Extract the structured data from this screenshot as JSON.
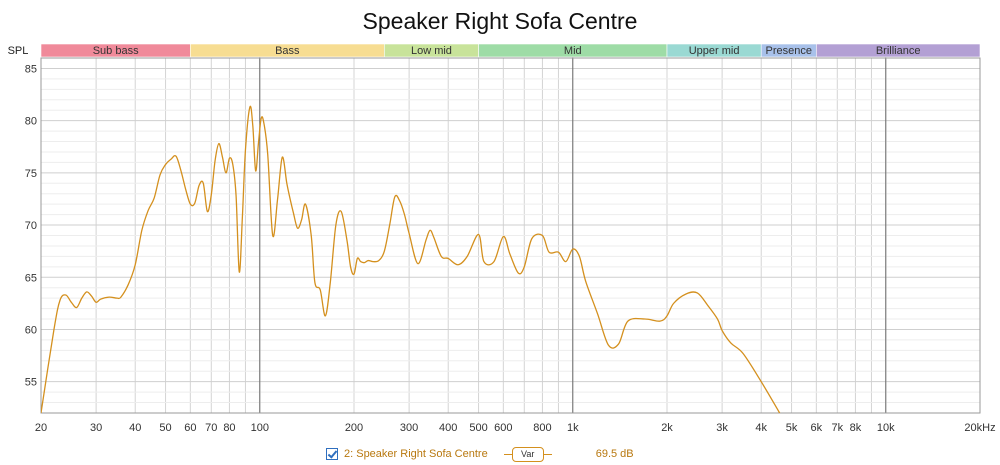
{
  "chart_data": {
    "type": "line",
    "title": "Speaker Right Sofa Centre",
    "ylabel": "SPL",
    "xlabel": "",
    "x_scale": "log",
    "xlim": [
      20,
      20000
    ],
    "ylim": [
      52,
      86
    ],
    "y_ticks": [
      "85",
      "80",
      "75",
      "70",
      "65",
      "60",
      "55"
    ],
    "y_tick_values": [
      85,
      80,
      75,
      70,
      65,
      60,
      55
    ],
    "x_ticks": [
      {
        "v": 20,
        "label": "20"
      },
      {
        "v": 30,
        "label": "30"
      },
      {
        "v": 40,
        "label": "40"
      },
      {
        "v": 50,
        "label": "50"
      },
      {
        "v": 60,
        "label": "60"
      },
      {
        "v": 70,
        "label": "70"
      },
      {
        "v": 80,
        "label": "80"
      },
      {
        "v": 100,
        "label": "100"
      },
      {
        "v": 200,
        "label": "200"
      },
      {
        "v": 300,
        "label": "300"
      },
      {
        "v": 400,
        "label": "400"
      },
      {
        "v": 500,
        "label": "500"
      },
      {
        "v": 600,
        "label": "600"
      },
      {
        "v": 800,
        "label": "800"
      },
      {
        "v": 1000,
        "label": "1k"
      },
      {
        "v": 2000,
        "label": "2k"
      },
      {
        "v": 3000,
        "label": "3k"
      },
      {
        "v": 4000,
        "label": "4k"
      },
      {
        "v": 5000,
        "label": "5k"
      },
      {
        "v": 6000,
        "label": "6k"
      },
      {
        "v": 7000,
        "label": "7k"
      },
      {
        "v": 8000,
        "label": "8k"
      },
      {
        "v": 10000,
        "label": "10k"
      },
      {
        "v": 20000,
        "label": "20kHz"
      }
    ],
    "major_x": [
      100,
      1000,
      10000
    ],
    "bands": [
      {
        "name": "Sub bass",
        "from": 20,
        "to": 60,
        "color": "#f08a9a"
      },
      {
        "name": "Bass",
        "from": 60,
        "to": 250,
        "color": "#f7dd92"
      },
      {
        "name": "Low mid",
        "from": 250,
        "to": 500,
        "color": "#c8e39a"
      },
      {
        "name": "Mid",
        "from": 500,
        "to": 2000,
        "color": "#9edca6"
      },
      {
        "name": "Upper mid",
        "from": 2000,
        "to": 4000,
        "color": "#9ad9d3"
      },
      {
        "name": "Presence",
        "from": 4000,
        "to": 6000,
        "color": "#a8c1ea"
      },
      {
        "name": "Brilliance",
        "from": 6000,
        "to": 20000,
        "color": "#b3a0d4"
      }
    ],
    "series": [
      {
        "name": "2: Speaker Right Sofa Centre",
        "color": "#d4901e",
        "x": [
          20,
          22,
          23,
          24,
          25,
          26,
          27,
          28,
          29,
          30,
          31,
          33,
          35,
          36,
          38,
          40,
          42,
          44,
          46,
          48,
          50,
          52,
          54,
          56,
          58,
          60,
          62,
          64,
          66,
          68,
          70,
          72,
          74,
          76,
          78,
          80,
          82,
          84,
          86,
          88,
          90,
          93,
          95,
          97,
          99,
          101,
          103,
          106,
          110,
          114,
          118,
          122,
          125,
          128,
          132,
          136,
          140,
          146,
          150,
          156,
          162,
          168,
          175,
          182,
          190,
          195,
          200,
          205,
          210,
          216,
          222,
          230,
          240,
          250,
          260,
          270,
          280,
          290,
          300,
          320,
          340,
          350,
          360,
          380,
          400,
          430,
          460,
          500,
          520,
          560,
          600,
          630,
          670,
          700,
          740,
          800,
          840,
          900,
          950,
          1000,
          1050,
          1100,
          1200,
          1300,
          1400,
          1500,
          1700,
          1900,
          2000,
          2100,
          2300,
          2500,
          2700,
          2900,
          3000,
          3200,
          3500,
          4000,
          4500,
          5000
        ],
        "y": [
          52,
          60,
          62.8,
          63.3,
          62.6,
          62.1,
          63.0,
          63.6,
          63.2,
          62.6,
          62.9,
          63.1,
          63.0,
          63.1,
          64.3,
          66.2,
          69.5,
          71.4,
          72.6,
          74.8,
          75.8,
          76.3,
          76.6,
          75.2,
          73.4,
          72.0,
          72.1,
          73.8,
          74.0,
          71.3,
          72.9,
          76.2,
          77.8,
          76.5,
          75.0,
          76.4,
          75.8,
          72.8,
          65.5,
          70.8,
          77.2,
          81.3,
          79.5,
          75.2,
          77.8,
          80.2,
          79.8,
          76.8,
          69.0,
          72.5,
          76.5,
          74.0,
          72.5,
          71.2,
          69.7,
          70.5,
          72.0,
          69.0,
          64.5,
          63.8,
          61.3,
          64.5,
          70.0,
          71.3,
          68.5,
          66.0,
          65.3,
          66.8,
          66.5,
          66.4,
          66.6,
          66.5,
          66.6,
          67.5,
          70.0,
          72.7,
          72.3,
          71.0,
          69.2,
          66.3,
          68.6,
          69.5,
          68.8,
          67.0,
          66.8,
          66.2,
          67.0,
          69.1,
          66.5,
          66.5,
          68.9,
          67.2,
          65.4,
          66.0,
          68.7,
          69.0,
          67.4,
          67.4,
          66.5,
          67.7,
          67.0,
          64.6,
          61.5,
          58.5,
          58.6,
          60.8,
          61.0,
          60.8,
          61.3,
          62.5,
          63.4,
          63.5,
          62.3,
          61.0,
          59.9,
          58.7,
          57.7,
          55.0,
          52.4,
          50.0
        ]
      }
    ]
  },
  "legend": {
    "series_label": "2: Speaker Right Sofa Centre",
    "smoothing_label": "Var",
    "value": "69.5 dB"
  }
}
